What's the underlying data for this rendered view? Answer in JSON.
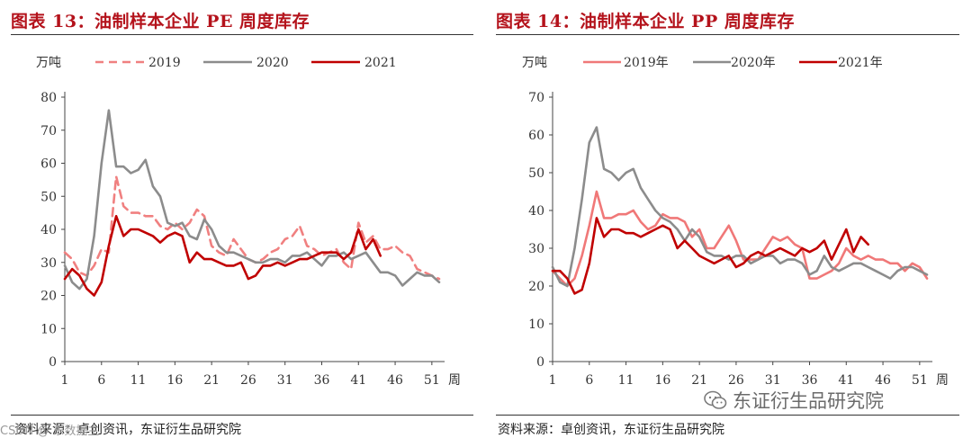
{
  "charts": [
    {
      "title": "图表 13：油制样本企业 PE 周度库存",
      "source": "资料来源：卓创资讯，东证衍生品研究院",
      "chart_data": {
        "type": "line",
        "ylabel": "万吨",
        "xlabel": "周",
        "ylim": [
          0,
          80
        ],
        "yticks": [
          0,
          10,
          20,
          30,
          40,
          50,
          60,
          70,
          80
        ],
        "xlim": [
          1,
          52
        ],
        "xticks": [
          1,
          6,
          11,
          16,
          21,
          26,
          31,
          36,
          41,
          46,
          51
        ],
        "series": [
          {
            "name": "2019",
            "color": "#f08080",
            "style": "dashed",
            "x": [
              1,
              2,
              3,
              4,
              5,
              6,
              7,
              8,
              9,
              10,
              11,
              12,
              13,
              14,
              15,
              16,
              17,
              18,
              19,
              20,
              21,
              22,
              23,
              24,
              25,
              26,
              27,
              28,
              29,
              30,
              31,
              32,
              33,
              34,
              35,
              36,
              37,
              38,
              39,
              40,
              41,
              42,
              43,
              44,
              45,
              46,
              47,
              48,
              49,
              50,
              51,
              52
            ],
            "values": [
              33,
              31,
              27,
              26,
              29,
              34,
              33,
              56,
              47,
              45,
              45,
              44,
              44,
              41,
              40,
              42,
              40,
              42,
              46,
              44,
              35,
              33,
              32,
              37,
              34,
              31,
              30,
              31,
              33,
              34,
              37,
              38,
              41,
              35,
              34,
              32,
              33,
              34,
              30,
              28,
              42,
              36,
              38,
              34,
              34,
              35,
              33,
              32,
              28,
              27,
              26,
              25
            ]
          },
          {
            "name": "2020",
            "color": "#8c8c8c",
            "style": "solid",
            "x": [
              1,
              2,
              3,
              4,
              5,
              6,
              7,
              8,
              9,
              10,
              11,
              12,
              13,
              14,
              15,
              16,
              17,
              18,
              19,
              20,
              21,
              22,
              23,
              24,
              25,
              26,
              27,
              28,
              29,
              30,
              31,
              32,
              33,
              34,
              35,
              36,
              37,
              38,
              39,
              40,
              41,
              42,
              43,
              44,
              45,
              46,
              47,
              48,
              49,
              50,
              51,
              52
            ],
            "values": [
              29,
              24,
              22,
              25,
              38,
              60,
              76,
              59,
              59,
              57,
              58,
              61,
              53,
              50,
              42,
              41,
              42,
              38,
              37,
              43,
              40,
              35,
              33,
              33,
              32,
              31,
              30,
              30,
              31,
              31,
              30,
              32,
              32,
              33,
              31,
              29,
              32,
              32,
              33,
              31,
              32,
              33,
              30,
              27,
              27,
              26,
              23,
              25,
              27,
              26,
              26,
              24
            ]
          },
          {
            "name": "2021",
            "color": "#c00000",
            "style": "solid",
            "x": [
              1,
              2,
              3,
              4,
              5,
              6,
              7,
              8,
              9,
              10,
              11,
              12,
              13,
              14,
              15,
              16,
              17,
              18,
              19,
              20,
              21,
              22,
              23,
              24,
              25,
              26,
              27,
              28,
              29,
              30,
              31,
              32,
              33,
              34,
              35,
              36,
              37,
              38,
              39,
              40,
              41,
              42,
              43,
              44
            ],
            "values": [
              25,
              28,
              26,
              22,
              20,
              24,
              35,
              44,
              38,
              40,
              40,
              39,
              38,
              36,
              38,
              39,
              38,
              30,
              33,
              31,
              31,
              30,
              29,
              29,
              30,
              25,
              26,
              29,
              29,
              30,
              29,
              30,
              31,
              31,
              32,
              33,
              33,
              33,
              31,
              33,
              40,
              34,
              37,
              32
            ]
          }
        ]
      }
    },
    {
      "title": "图表 14：油制样本企业 PP 周度库存",
      "source": "资料来源：卓创资讯，东证衍生品研究院",
      "chart_data": {
        "type": "line",
        "ylabel": "万吨",
        "xlabel": "周",
        "ylim": [
          0,
          70
        ],
        "yticks": [
          0,
          10,
          20,
          30,
          40,
          50,
          60,
          70
        ],
        "xlim": [
          1,
          52
        ],
        "xticks": [
          1,
          6,
          11,
          16,
          21,
          26,
          31,
          36,
          41,
          46,
          51
        ],
        "series": [
          {
            "name": "2019年",
            "color": "#f07878",
            "style": "solid",
            "x": [
              1,
              2,
              3,
              4,
              5,
              6,
              7,
              8,
              9,
              10,
              11,
              12,
              13,
              14,
              15,
              16,
              17,
              18,
              19,
              20,
              21,
              22,
              23,
              24,
              25,
              26,
              27,
              28,
              29,
              30,
              31,
              32,
              33,
              34,
              35,
              36,
              37,
              38,
              39,
              40,
              41,
              42,
              43,
              44,
              45,
              46,
              47,
              48,
              49,
              50,
              51,
              52
            ],
            "values": [
              24,
              22,
              20,
              22,
              28,
              36,
              45,
              38,
              38,
              39,
              39,
              40,
              37,
              35,
              36,
              39,
              38,
              38,
              37,
              33,
              35,
              30,
              30,
              33,
              36,
              32,
              27,
              27,
              27,
              30,
              33,
              32,
              33,
              31,
              30,
              22,
              22,
              23,
              24,
              26,
              30,
              28,
              27,
              28,
              27,
              27,
              26,
              26,
              24,
              26,
              25,
              22
            ]
          },
          {
            "name": "2020年",
            "color": "#8c8c8c",
            "style": "solid",
            "x": [
              1,
              2,
              3,
              4,
              5,
              6,
              7,
              8,
              9,
              10,
              11,
              12,
              13,
              14,
              15,
              16,
              17,
              18,
              19,
              20,
              21,
              22,
              23,
              24,
              25,
              26,
              27,
              28,
              29,
              30,
              31,
              32,
              33,
              34,
              35,
              36,
              37,
              38,
              39,
              40,
              41,
              42,
              43,
              44,
              45,
              46,
              47,
              48,
              49,
              50,
              51,
              52
            ],
            "values": [
              25,
              21,
              20,
              30,
              43,
              58,
              62,
              51,
              50,
              48,
              50,
              51,
              46,
              43,
              40,
              38,
              37,
              35,
              32,
              35,
              33,
              29,
              28,
              28,
              27,
              28,
              28,
              26,
              27,
              28,
              28,
              26,
              27,
              27,
              26,
              23,
              24,
              28,
              25,
              24,
              25,
              26,
              26,
              25,
              24,
              23,
              22,
              24,
              25,
              25,
              24,
              23
            ]
          },
          {
            "name": "2021年",
            "color": "#c00000",
            "style": "solid",
            "x": [
              1,
              2,
              3,
              4,
              5,
              6,
              7,
              8,
              9,
              10,
              11,
              12,
              13,
              14,
              15,
              16,
              17,
              18,
              19,
              20,
              21,
              22,
              23,
              24,
              25,
              26,
              27,
              28,
              29,
              30,
              31,
              32,
              33,
              34,
              35,
              36,
              37,
              38,
              39,
              40,
              41,
              42,
              43,
              44
            ],
            "values": [
              24,
              24,
              22,
              18,
              19,
              26,
              38,
              33,
              35,
              35,
              34,
              34,
              33,
              34,
              35,
              36,
              35,
              30,
              32,
              30,
              28,
              27,
              26,
              27,
              28,
              25,
              26,
              28,
              29,
              28,
              29,
              30,
              29,
              28,
              30,
              29,
              30,
              32,
              27,
              31,
              35,
              29,
              33,
              31
            ]
          }
        ]
      }
    }
  ],
  "watermark": "东证衍生品研究院",
  "corner_mark": "CSDN @ 东数据主"
}
